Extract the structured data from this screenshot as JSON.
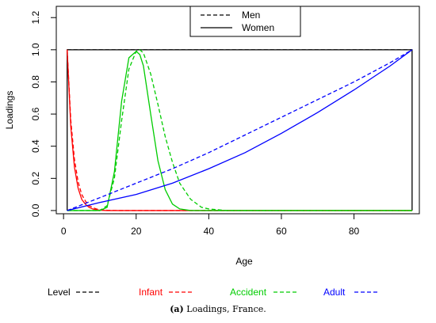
{
  "chart_data": {
    "type": "line",
    "xlabel": "Age",
    "ylabel": "Loadings",
    "xlim": [
      -2,
      98
    ],
    "ylim": [
      -0.02,
      1.27
    ],
    "x_ticks": [
      0,
      20,
      40,
      60,
      80
    ],
    "y_ticks": [
      0.0,
      0.2,
      0.4,
      0.6,
      0.8,
      1.0,
      1.2
    ],
    "x_tick_labels": [
      "0",
      "20",
      "40",
      "60",
      "80"
    ],
    "y_tick_labels": [
      "0.0",
      "0.2",
      "0.4",
      "0.6",
      "0.8",
      "1.0",
      "1.2"
    ],
    "grid": false,
    "legend_top": {
      "placement": "top-center",
      "entries": [
        {
          "label": "Men",
          "style": "dashed"
        },
        {
          "label": "Women",
          "style": "solid"
        }
      ]
    },
    "legend_bottom": {
      "placement": "bottom",
      "entries": [
        {
          "label": "Level",
          "color": "#000000"
        },
        {
          "label": "Infant",
          "color": "#ff0000"
        },
        {
          "label": "Accident",
          "color": "#00cc00"
        },
        {
          "label": "Adult",
          "color": "#0000ff"
        }
      ]
    },
    "series": [
      {
        "factor": "Level",
        "sex": "Men",
        "color": "#000000",
        "style": "dashed",
        "x": [
          1,
          96
        ],
        "y": [
          1.0,
          1.0
        ]
      },
      {
        "factor": "Level",
        "sex": "Women",
        "color": "#000000",
        "style": "solid",
        "x": [
          1,
          1,
          96,
          96
        ],
        "y": [
          0.0,
          1.0,
          1.0,
          0.0
        ]
      },
      {
        "factor": "Infant",
        "sex": "Men",
        "color": "#ff0000",
        "style": "dashed",
        "x": [
          1,
          2,
          3,
          4,
          5,
          6,
          7,
          8,
          9,
          10,
          12,
          15,
          20,
          96
        ],
        "y": [
          1.0,
          0.56,
          0.32,
          0.18,
          0.1,
          0.06,
          0.03,
          0.02,
          0.01,
          0.005,
          0.002,
          0.0,
          0.0,
          0.0
        ]
      },
      {
        "factor": "Infant",
        "sex": "Women",
        "color": "#ff0000",
        "style": "solid",
        "x": [
          1,
          2,
          3,
          4,
          5,
          6,
          7,
          8,
          9,
          10,
          12,
          15,
          20,
          96
        ],
        "y": [
          1.0,
          0.52,
          0.27,
          0.14,
          0.07,
          0.04,
          0.02,
          0.01,
          0.005,
          0.002,
          0.0,
          0.0,
          0.0,
          0.0
        ]
      },
      {
        "factor": "Accident",
        "sex": "Men",
        "color": "#00cc00",
        "style": "dashed",
        "x": [
          1,
          10,
          12,
          14,
          16,
          18,
          20,
          21,
          22,
          24,
          26,
          28,
          30,
          32,
          35,
          38,
          40,
          45,
          96
        ],
        "y": [
          0.0,
          0.0,
          0.03,
          0.2,
          0.56,
          0.88,
          0.99,
          1.0,
          0.98,
          0.85,
          0.66,
          0.46,
          0.3,
          0.17,
          0.07,
          0.02,
          0.01,
          0.0,
          0.0
        ]
      },
      {
        "factor": "Accident",
        "sex": "Women",
        "color": "#00cc00",
        "style": "solid",
        "x": [
          1,
          10,
          12,
          14,
          16,
          18,
          20,
          21,
          22,
          24,
          26,
          28,
          30,
          32,
          35,
          38,
          96
        ],
        "y": [
          0.0,
          0.0,
          0.02,
          0.24,
          0.68,
          0.95,
          0.99,
          0.97,
          0.9,
          0.6,
          0.31,
          0.13,
          0.04,
          0.01,
          0.0,
          0.0,
          0.0
        ]
      },
      {
        "factor": "Adult",
        "sex": "Men",
        "color": "#0000ff",
        "style": "dashed",
        "x": [
          1,
          10,
          20,
          30,
          40,
          50,
          60,
          70,
          80,
          90,
          96
        ],
        "y": [
          0.0,
          0.08,
          0.17,
          0.26,
          0.36,
          0.47,
          0.58,
          0.69,
          0.8,
          0.92,
          1.0
        ]
      },
      {
        "factor": "Adult",
        "sex": "Women",
        "color": "#0000ff",
        "style": "solid",
        "x": [
          1,
          10,
          20,
          30,
          40,
          50,
          60,
          70,
          80,
          90,
          96
        ],
        "y": [
          0.0,
          0.05,
          0.1,
          0.17,
          0.26,
          0.36,
          0.48,
          0.61,
          0.75,
          0.9,
          1.0
        ]
      }
    ]
  },
  "caption": {
    "label": "(a)",
    "text": "Loadings, France."
  }
}
